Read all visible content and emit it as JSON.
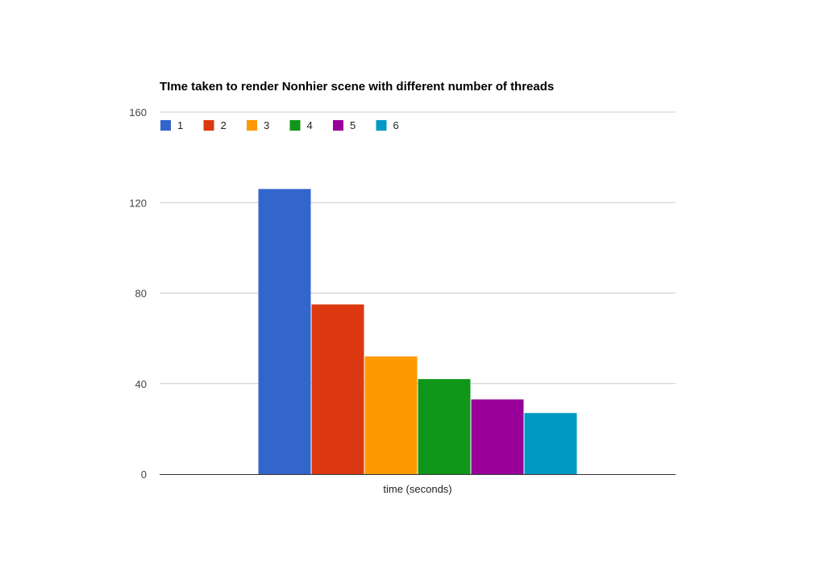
{
  "chart_data": {
    "type": "bar",
    "title": "TIme taken to render Nonhier scene with different number of threads",
    "xlabel": "time (seconds)",
    "ylabel": "",
    "categories": [
      "time (seconds)"
    ],
    "ylim": [
      0,
      160
    ],
    "yticks": [
      0,
      40,
      80,
      120,
      160
    ],
    "grid": true,
    "legend_position": "top-left",
    "series": [
      {
        "name": "1",
        "values": [
          126
        ],
        "color": "#3366cc"
      },
      {
        "name": "2",
        "values": [
          75
        ],
        "color": "#dc3912"
      },
      {
        "name": "3",
        "values": [
          52
        ],
        "color": "#ff9900"
      },
      {
        "name": "4",
        "values": [
          42
        ],
        "color": "#109618"
      },
      {
        "name": "5",
        "values": [
          33
        ],
        "color": "#990099"
      },
      {
        "name": "6",
        "values": [
          27
        ],
        "color": "#0099c6"
      }
    ]
  }
}
